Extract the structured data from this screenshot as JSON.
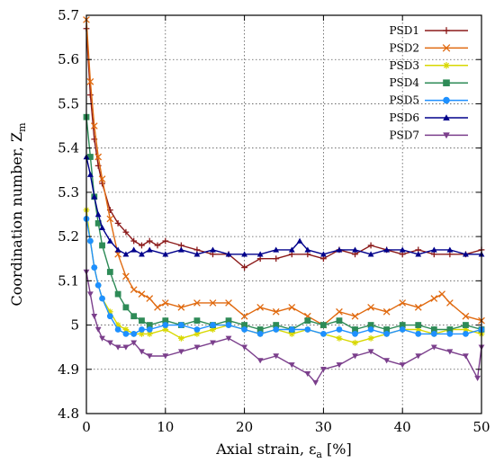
{
  "chart_data": {
    "type": "line",
    "xlabel_main": "Axial strain, ε",
    "xlabel_sub": "a",
    "xlabel_tail": " [%]",
    "ylabel_main": "Coordination number, Z",
    "ylabel_sub": "m",
    "xlim": [
      0,
      50
    ],
    "ylim": [
      4.8,
      5.7
    ],
    "xticks": [
      0,
      10,
      20,
      30,
      40,
      50
    ],
    "xtick_labels": [
      "0",
      "10",
      "20",
      "30",
      "40",
      "50"
    ],
    "yticks": [
      4.8,
      4.9,
      5.0,
      5.1,
      5.2,
      5.3,
      5.4,
      5.5,
      5.6,
      5.7
    ],
    "ytick_labels": [
      "4.8",
      "4.9",
      "5",
      "5.1",
      "5.2",
      "5.3",
      "5.4",
      "5.5",
      "5.6",
      "5.7"
    ],
    "grid": true,
    "legend_position": "top-right",
    "series": [
      {
        "name": "PSD1",
        "color": "#8b1a1a",
        "marker": "plus",
        "x": [
          0,
          0.5,
          1,
          1.5,
          2,
          3,
          4,
          5,
          6,
          7,
          8,
          9,
          10,
          12,
          14,
          16,
          18,
          20,
          22,
          24,
          26,
          28,
          30,
          32,
          34,
          36,
          38,
          40,
          42,
          44,
          46,
          48,
          50
        ],
        "y": [
          5.67,
          5.52,
          5.42,
          5.36,
          5.32,
          5.26,
          5.23,
          5.21,
          5.19,
          5.18,
          5.19,
          5.18,
          5.19,
          5.18,
          5.17,
          5.16,
          5.16,
          5.13,
          5.15,
          5.15,
          5.16,
          5.16,
          5.15,
          5.17,
          5.16,
          5.18,
          5.17,
          5.16,
          5.17,
          5.16,
          5.16,
          5.16,
          5.17
        ]
      },
      {
        "name": "PSD2",
        "color": "#e06a10",
        "marker": "cross",
        "x": [
          0,
          0.5,
          1,
          1.5,
          2,
          3,
          4,
          5,
          6,
          7,
          8,
          9,
          10,
          12,
          14,
          16,
          18,
          20,
          22,
          24,
          26,
          28,
          30,
          32,
          34,
          36,
          38,
          40,
          42,
          44,
          45,
          46,
          48,
          50
        ],
        "y": [
          5.69,
          5.55,
          5.45,
          5.38,
          5.33,
          5.24,
          5.16,
          5.11,
          5.08,
          5.07,
          5.06,
          5.04,
          5.05,
          5.04,
          5.05,
          5.05,
          5.05,
          5.02,
          5.04,
          5.03,
          5.04,
          5.02,
          5.0,
          5.03,
          5.02,
          5.04,
          5.03,
          5.05,
          5.04,
          5.06,
          5.07,
          5.05,
          5.02,
          5.01
        ]
      },
      {
        "name": "PSD3",
        "color": "#d8d800",
        "marker": "star",
        "x": [
          0,
          0.5,
          1,
          1.5,
          2,
          3,
          4,
          5,
          6,
          7,
          8,
          10,
          12,
          14,
          16,
          18,
          20,
          22,
          24,
          26,
          28,
          30,
          32,
          34,
          36,
          38,
          40,
          42,
          44,
          46,
          48,
          50
        ],
        "y": [
          5.26,
          5.19,
          5.13,
          5.09,
          5.06,
          5.03,
          5.0,
          4.99,
          4.98,
          4.98,
          4.98,
          4.99,
          4.97,
          4.98,
          4.99,
          5.0,
          4.99,
          4.98,
          4.99,
          4.98,
          4.99,
          4.98,
          4.97,
          4.96,
          4.97,
          4.98,
          4.99,
          4.99,
          4.98,
          4.99,
          4.99,
          4.98
        ]
      },
      {
        "name": "PSD4",
        "color": "#2e8b57",
        "marker": "square",
        "x": [
          0,
          0.5,
          1,
          1.5,
          2,
          3,
          4,
          5,
          6,
          7,
          8,
          10,
          12,
          14,
          16,
          18,
          20,
          22,
          24,
          26,
          28,
          30,
          32,
          34,
          36,
          38,
          40,
          42,
          44,
          46,
          48,
          50
        ],
        "y": [
          5.47,
          5.38,
          5.29,
          5.23,
          5.18,
          5.12,
          5.07,
          5.04,
          5.02,
          5.01,
          5.0,
          5.01,
          5.0,
          5.01,
          5.0,
          5.01,
          5.0,
          4.99,
          5.0,
          4.99,
          5.01,
          5.0,
          5.01,
          4.99,
          5.0,
          4.99,
          5.0,
          5.0,
          4.99,
          4.99,
          5.0,
          4.99
        ]
      },
      {
        "name": "PSD5",
        "color": "#1e90ff",
        "marker": "circle",
        "x": [
          0,
          0.5,
          1,
          1.5,
          2,
          3,
          4,
          5,
          6,
          7,
          8,
          10,
          12,
          14,
          16,
          18,
          20,
          22,
          24,
          26,
          28,
          30,
          32,
          34,
          36,
          38,
          40,
          42,
          44,
          46,
          48,
          50
        ],
        "y": [
          5.24,
          5.19,
          5.13,
          5.09,
          5.06,
          5.02,
          4.99,
          4.98,
          4.98,
          4.99,
          4.99,
          5.0,
          5.0,
          4.99,
          5.0,
          5.0,
          4.99,
          4.98,
          4.99,
          4.99,
          4.99,
          4.98,
          4.99,
          4.98,
          4.99,
          4.98,
          4.99,
          4.98,
          4.98,
          4.98,
          4.98,
          4.99
        ]
      },
      {
        "name": "PSD6",
        "color": "#00008b",
        "marker": "triangle-up",
        "x": [
          0,
          0.5,
          1,
          1.5,
          2,
          3,
          4,
          5,
          6,
          7,
          8,
          10,
          12,
          14,
          16,
          18,
          20,
          22,
          24,
          26,
          27,
          28,
          30,
          32,
          34,
          36,
          38,
          40,
          42,
          44,
          46,
          48,
          50
        ],
        "y": [
          5.38,
          5.34,
          5.29,
          5.25,
          5.22,
          5.19,
          5.17,
          5.16,
          5.17,
          5.16,
          5.17,
          5.16,
          5.17,
          5.16,
          5.17,
          5.16,
          5.16,
          5.16,
          5.17,
          5.17,
          5.19,
          5.17,
          5.16,
          5.17,
          5.17,
          5.16,
          5.17,
          5.17,
          5.16,
          5.17,
          5.17,
          5.16,
          5.16
        ]
      },
      {
        "name": "PSD7",
        "color": "#7b3f8c",
        "marker": "triangle-down",
        "x": [
          0,
          0.5,
          1,
          1.5,
          2,
          3,
          4,
          5,
          6,
          7,
          8,
          10,
          12,
          14,
          16,
          18,
          20,
          22,
          24,
          26,
          28,
          29,
          30,
          32,
          34,
          36,
          38,
          40,
          42,
          44,
          46,
          48,
          49.5,
          50
        ],
        "y": [
          5.12,
          5.07,
          5.02,
          4.99,
          4.97,
          4.96,
          4.95,
          4.95,
          4.96,
          4.94,
          4.93,
          4.93,
          4.94,
          4.95,
          4.96,
          4.97,
          4.95,
          4.92,
          4.93,
          4.91,
          4.89,
          4.87,
          4.9,
          4.91,
          4.93,
          4.94,
          4.92,
          4.91,
          4.93,
          4.95,
          4.94,
          4.93,
          4.88,
          4.95
        ]
      }
    ]
  }
}
